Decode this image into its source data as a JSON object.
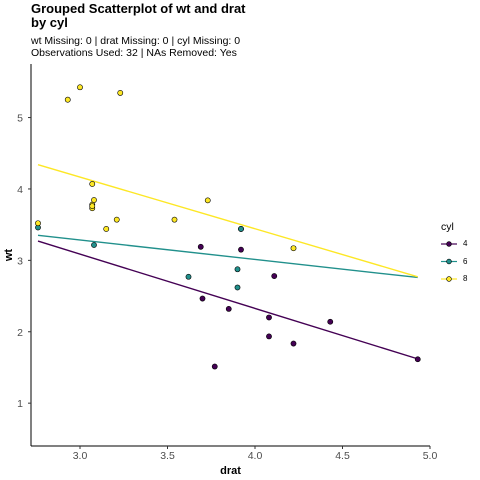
{
  "title": "Grouped Scatterplot of wt and drat\n by cyl",
  "subtitle": "wt Missing: 0 | drat Missing: 0 | cyl Missing: 0\nObservations Used: 32 | NAs Removed: Yes",
  "chart_data": {
    "type": "scatter",
    "xlabel": "drat",
    "ylabel": "wt",
    "xlim": [
      2.72,
      5.0
    ],
    "ylim": [
      0.4,
      5.75
    ],
    "xticks": [
      3.0,
      3.5,
      4.0,
      4.5,
      5.0
    ],
    "xtick_labels": [
      "3.0",
      "3.5",
      "4.0",
      "4.5",
      "5.0"
    ],
    "yticks": [
      1,
      2,
      3,
      4,
      5
    ],
    "ytick_labels": [
      "1",
      "2",
      "3",
      "4",
      "5"
    ],
    "grid": false,
    "legend": {
      "title": "cyl",
      "placement": "right"
    },
    "series": [
      {
        "name": "4",
        "color": "#440154",
        "points": [
          [
            3.85,
            2.32
          ],
          [
            3.69,
            3.19
          ],
          [
            3.92,
            3.15
          ],
          [
            4.08,
            2.2
          ],
          [
            4.93,
            1.615
          ],
          [
            4.22,
            1.835
          ],
          [
            3.7,
            2.465
          ],
          [
            4.08,
            1.935
          ],
          [
            4.43,
            2.14
          ],
          [
            3.77,
            1.513
          ],
          [
            4.11,
            2.78
          ]
        ],
        "fit": [
          [
            2.76,
            3.27
          ],
          [
            4.93,
            1.62
          ]
        ]
      },
      {
        "name": "6",
        "color": "#21908C",
        "points": [
          [
            3.9,
            2.62
          ],
          [
            3.9,
            2.875
          ],
          [
            3.08,
            3.215
          ],
          [
            2.76,
            3.46
          ],
          [
            3.92,
            3.44
          ],
          [
            3.92,
            3.44
          ],
          [
            3.62,
            2.77
          ]
        ],
        "fit": [
          [
            2.76,
            3.35
          ],
          [
            4.93,
            2.76
          ]
        ]
      },
      {
        "name": "8",
        "color": "#FDE725",
        "points": [
          [
            3.15,
            3.44
          ],
          [
            3.21,
            3.57
          ],
          [
            3.07,
            4.07
          ],
          [
            3.07,
            3.73
          ],
          [
            3.07,
            3.78
          ],
          [
            2.93,
            5.25
          ],
          [
            3.0,
            5.424
          ],
          [
            3.23,
            5.345
          ],
          [
            2.76,
            3.52
          ],
          [
            3.08,
            3.845
          ],
          [
            4.22,
            3.17
          ],
          [
            3.54,
            3.57
          ],
          [
            3.73,
            3.84
          ],
          [
            3.07,
            3.76
          ]
        ],
        "fit": [
          [
            2.76,
            4.34
          ],
          [
            4.93,
            2.77
          ]
        ]
      }
    ]
  }
}
